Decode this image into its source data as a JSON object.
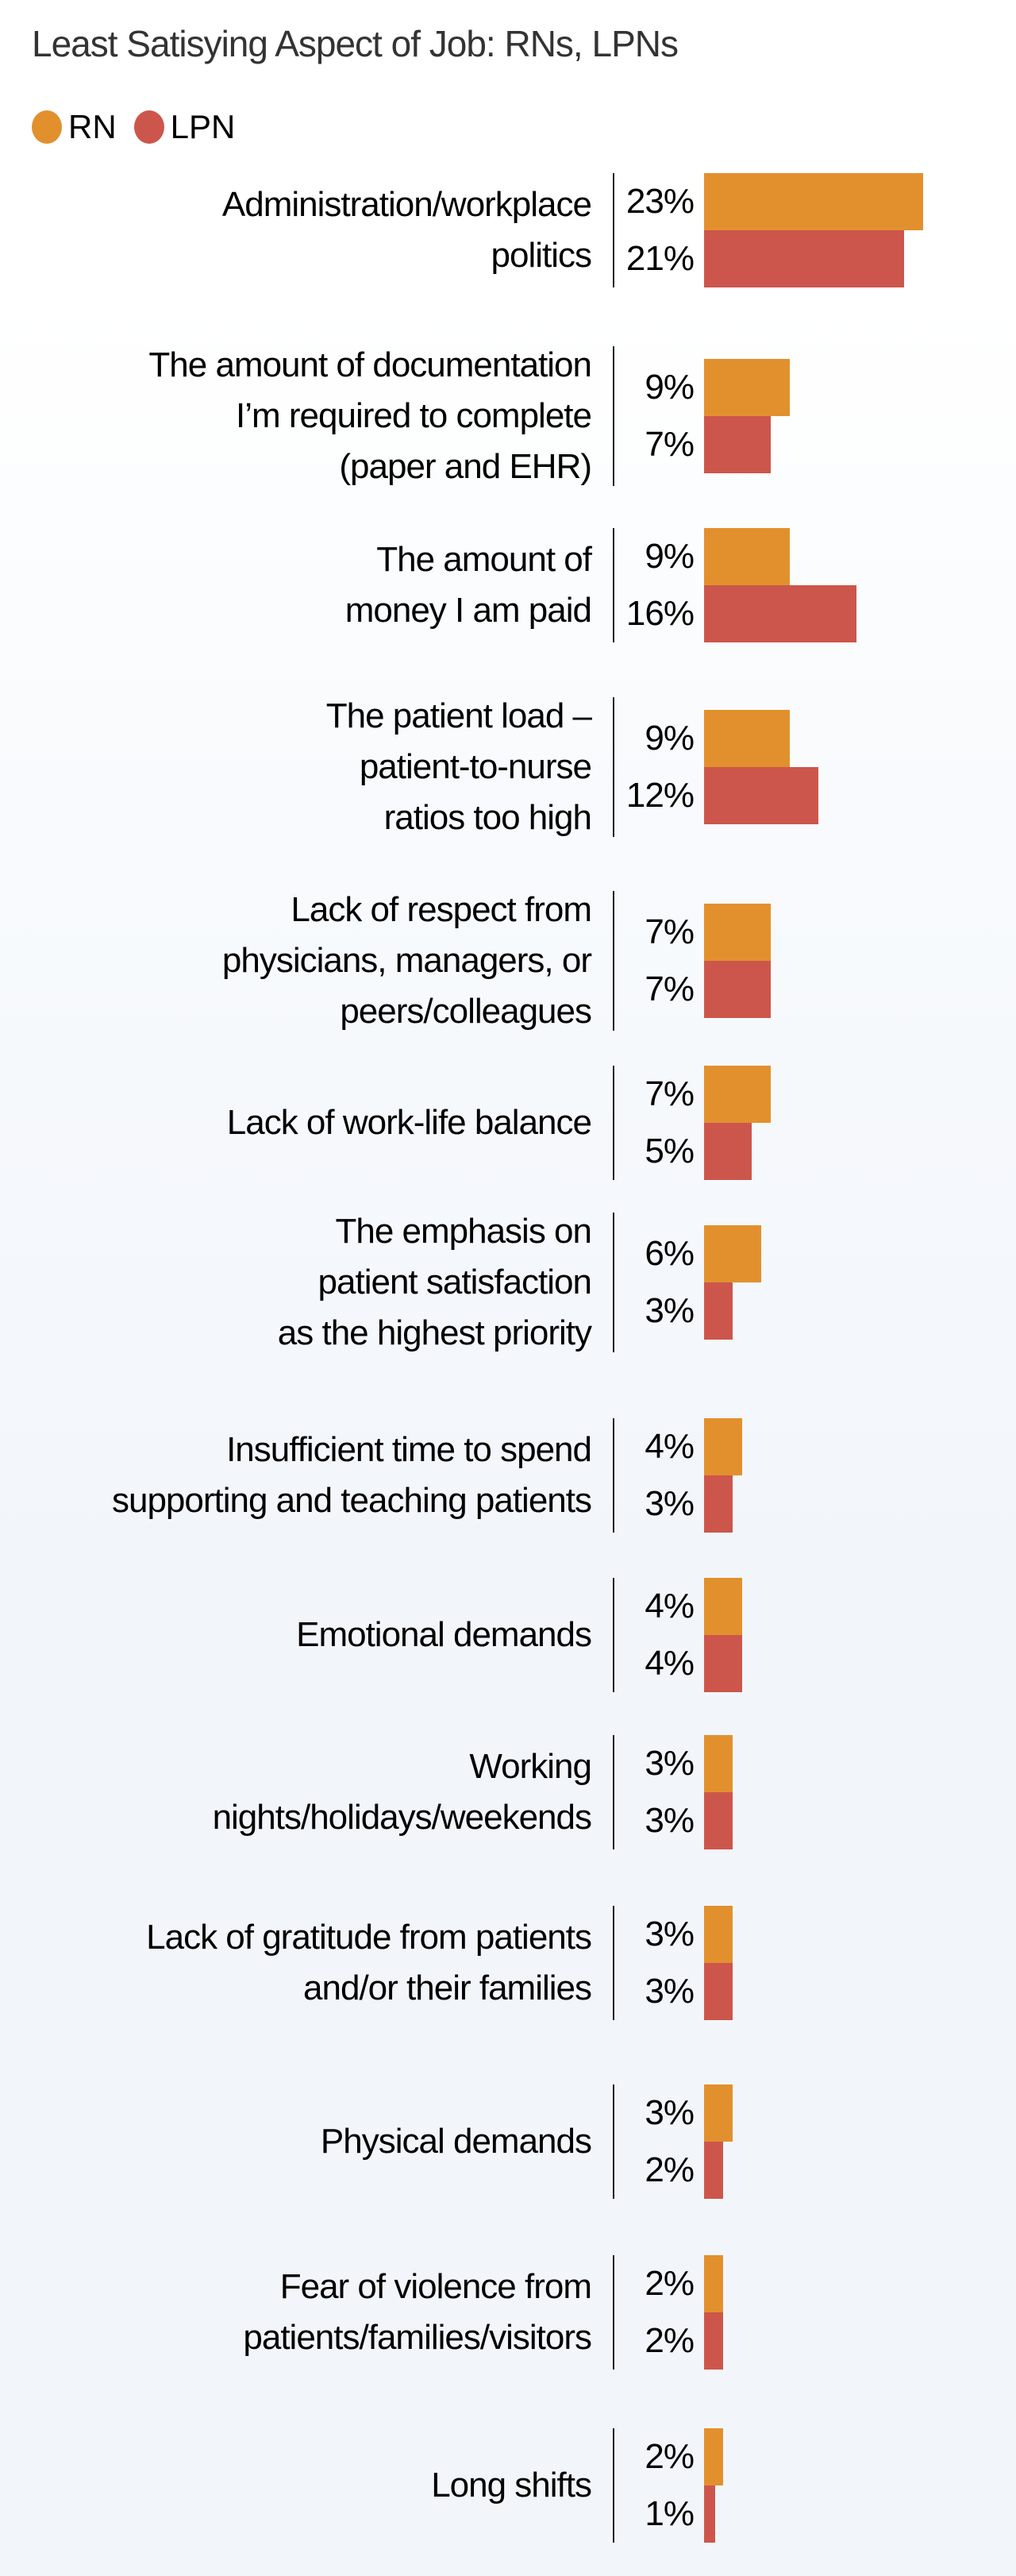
{
  "chart_data": {
    "type": "bar",
    "orientation": "horizontal",
    "title": "Least Satisying Aspect of Job: RNs, LPNs",
    "legend_position": "top-left",
    "grid": false,
    "colors": {
      "RN": "#e2902e",
      "LPN": "#cc564b"
    },
    "categories": [
      "Administration/workplace\npolitics",
      "The amount of documentation\nI’m required to complete\n(paper and EHR)",
      "The amount of\nmoney I am paid",
      "The patient load –\npatient-to-nurse\nratios too high",
      "Lack of respect from\nphysicians, managers, or\npeers/colleagues",
      "Lack of work-life balance",
      "The emphasis on\npatient satisfaction\nas the highest priority",
      "Insufficient time to spend\nsupporting and teaching patients",
      "Emotional demands",
      "Working\nnights/holidays/weekends",
      "Lack of gratitude from patients\nand/or their families",
      "Physical demands",
      "Fear of violence from\npatients/families/visitors",
      "Long shifts"
    ],
    "series": [
      {
        "name": "RN",
        "values": [
          23,
          9,
          9,
          9,
          7,
          7,
          6,
          4,
          4,
          3,
          3,
          3,
          2,
          2
        ]
      },
      {
        "name": "LPN",
        "values": [
          21,
          7,
          16,
          12,
          7,
          5,
          3,
          3,
          4,
          3,
          3,
          2,
          2,
          1
        ]
      }
    ],
    "value_suffix": "%"
  }
}
